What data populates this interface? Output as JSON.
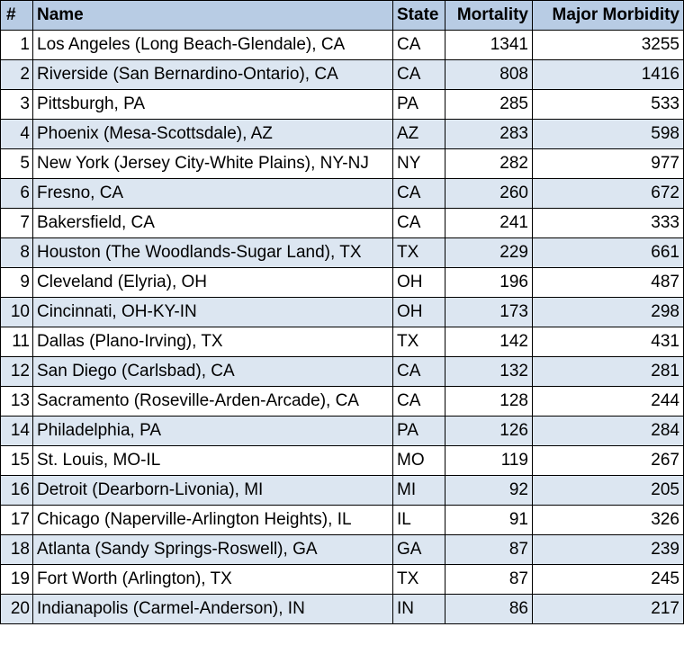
{
  "table": {
    "headers": {
      "num": "#",
      "name": "Name",
      "state": "State",
      "mortality": "Mortality",
      "morbidity": "Major Morbidity"
    },
    "colors": {
      "header_bg": "#b8cce4",
      "band_bg": "#dce6f1",
      "plain_bg": "#ffffff",
      "border": "#000000"
    },
    "rows": [
      {
        "num": "1",
        "name": "Los Angeles (Long Beach-Glendale), CA",
        "state": "CA",
        "mortality": "1341",
        "morbidity": "3255"
      },
      {
        "num": "2",
        "name": "Riverside (San Bernardino-Ontario), CA",
        "state": "CA",
        "mortality": "808",
        "morbidity": "1416"
      },
      {
        "num": "3",
        "name": "Pittsburgh, PA",
        "state": "PA",
        "mortality": "285",
        "morbidity": "533"
      },
      {
        "num": "4",
        "name": "Phoenix (Mesa-Scottsdale), AZ",
        "state": "AZ",
        "mortality": "283",
        "morbidity": "598"
      },
      {
        "num": "5",
        "name": "New York (Jersey City-White Plains), NY-NJ",
        "state": "NY",
        "mortality": "282",
        "morbidity": "977"
      },
      {
        "num": "6",
        "name": "Fresno, CA",
        "state": "CA",
        "mortality": "260",
        "morbidity": "672"
      },
      {
        "num": "7",
        "name": "Bakersfield, CA",
        "state": "CA",
        "mortality": "241",
        "morbidity": "333"
      },
      {
        "num": "8",
        "name": "Houston (The Woodlands-Sugar Land), TX",
        "state": "TX",
        "mortality": "229",
        "morbidity": "661"
      },
      {
        "num": "9",
        "name": "Cleveland (Elyria), OH",
        "state": "OH",
        "mortality": "196",
        "morbidity": "487"
      },
      {
        "num": "10",
        "name": "Cincinnati, OH-KY-IN",
        "state": "OH",
        "mortality": "173",
        "morbidity": "298"
      },
      {
        "num": "11",
        "name": "Dallas (Plano-Irving), TX",
        "state": "TX",
        "mortality": "142",
        "morbidity": "431"
      },
      {
        "num": "12",
        "name": "San Diego (Carlsbad), CA",
        "state": "CA",
        "mortality": "132",
        "morbidity": "281"
      },
      {
        "num": "13",
        "name": "Sacramento (Roseville-Arden-Arcade), CA",
        "state": "CA",
        "mortality": "128",
        "morbidity": "244"
      },
      {
        "num": "14",
        "name": "Philadelphia, PA",
        "state": "PA",
        "mortality": "126",
        "morbidity": "284"
      },
      {
        "num": "15",
        "name": "St. Louis, MO-IL",
        "state": "MO",
        "mortality": "119",
        "morbidity": "267"
      },
      {
        "num": "16",
        "name": "Detroit (Dearborn-Livonia), MI",
        "state": "MI",
        "mortality": "92",
        "morbidity": "205"
      },
      {
        "num": "17",
        "name": "Chicago (Naperville-Arlington Heights), IL",
        "state": "IL",
        "mortality": "91",
        "morbidity": "326"
      },
      {
        "num": "18",
        "name": "Atlanta (Sandy Springs-Roswell), GA",
        "state": "GA",
        "mortality": "87",
        "morbidity": "239"
      },
      {
        "num": "19",
        "name": "Fort Worth (Arlington), TX",
        "state": "TX",
        "mortality": "87",
        "morbidity": "245"
      },
      {
        "num": "20",
        "name": "Indianapolis (Carmel-Anderson), IN",
        "state": "IN",
        "mortality": "86",
        "morbidity": "217"
      }
    ]
  }
}
